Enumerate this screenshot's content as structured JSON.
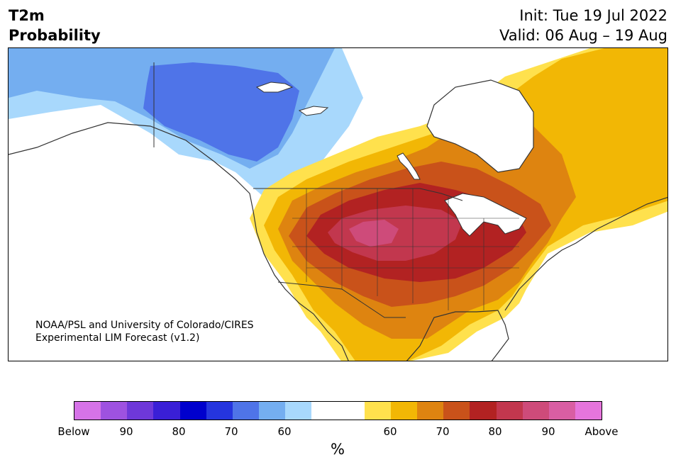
{
  "header": {
    "variable": "T2m",
    "product": "Probability",
    "init": "Init: Tue 19 Jul 2022",
    "valid": "Valid: 06 Aug – 19 Aug"
  },
  "map": {
    "credit_line1": "NOAA/PSL and University of Colorado/CIRES",
    "credit_line2": "Experimental LIM Forecast (v1.2)",
    "colors": {
      "land_border": "#333333",
      "lakes": "#ffffff"
    }
  },
  "legend": {
    "unit": "%",
    "colors": [
      "#d673e8",
      "#9e52e0",
      "#6e38d9",
      "#3a1fd6",
      "#0000cd",
      "#2535de",
      "#4f74e8",
      "#74aef0",
      "#a8d8fc",
      "#ffffff",
      "#ffffff",
      "#ffe14d",
      "#f2b705",
      "#de8410",
      "#c9521a",
      "#b22222",
      "#c2374e",
      "#ce4b7a",
      "#d95ea3",
      "#e675dc"
    ],
    "ticks": [
      "Below",
      "90",
      "80",
      "70",
      "60",
      "60",
      "70",
      "80",
      "90",
      "Above"
    ]
  }
}
